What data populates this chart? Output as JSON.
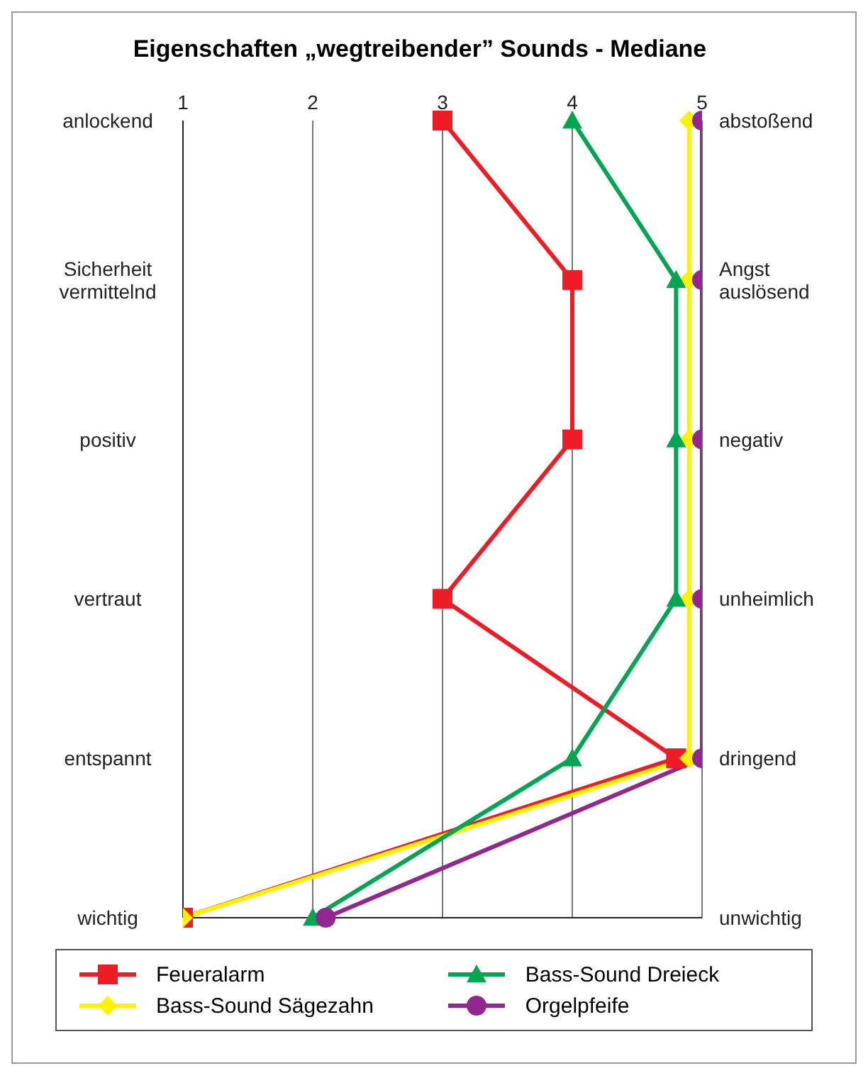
{
  "chart_data": {
    "type": "line",
    "orientation": "horizontal",
    "title": "Eigenschaften „wegtreibender” Sounds - Mediane",
    "categories": [
      "anlockend",
      "Sicherheit vermittelnd",
      "positiv",
      "vertraut",
      "entspannt",
      "wichtig"
    ],
    "y2_categories": [
      "abstoßend",
      "Angst auslösend",
      "negativ",
      "unheimlich",
      "dringend",
      "unwichtig"
    ],
    "xlim": [
      1,
      5
    ],
    "xticks": [
      1,
      2,
      3,
      4,
      5
    ],
    "grid": "x",
    "legend": "bottom",
    "series": [
      {
        "name": "Feueralarm",
        "color": "#ee1c25",
        "marker": "square",
        "values": [
          3,
          4,
          4,
          3,
          4.8,
          1
        ]
      },
      {
        "name": "Bass-Sound Sägezahn",
        "color": "#fff200",
        "marker": "diamond",
        "values": [
          4.9,
          4.9,
          4.9,
          4.9,
          4.9,
          1
        ]
      },
      {
        "name": "Bass-Sound Dreieck",
        "color": "#00a651",
        "marker": "triangle",
        "values": [
          4,
          4.8,
          4.8,
          4.8,
          4,
          2
        ]
      },
      {
        "name": "Orgelpfeife",
        "color": "#92278f",
        "marker": "circle",
        "values": [
          5,
          5,
          5,
          5,
          5,
          2.1
        ]
      }
    ]
  }
}
